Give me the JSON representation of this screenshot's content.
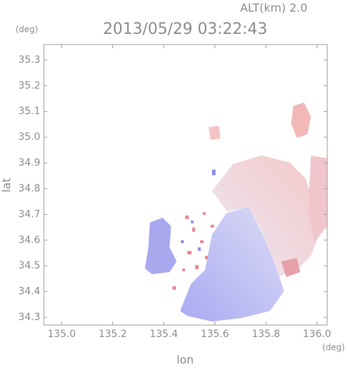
{
  "chart_data": {
    "type": "map",
    "title": "2013/05/29 03:22:43",
    "subtitle": "ALT(km) 2.0",
    "xlabel": "lon",
    "ylabel": "lat",
    "xunit": "(deg)",
    "yunit": "(deg)",
    "xlim": [
      134.93,
      136.04
    ],
    "ylim": [
      34.27,
      35.36
    ],
    "xticks": [
      {
        "value": 135,
        "label": "135.0"
      },
      135.2,
      135.4,
      135.6,
      135.8,
      {
        "value": 136,
        "label": "136.0"
      }
    ],
    "yticks": [
      34.3,
      34.4,
      34.5,
      34.6,
      34.7,
      34.8,
      34.9,
      {
        "value": 35,
        "label": "35.0"
      },
      35.1,
      35.2,
      35.3
    ]
  }
}
